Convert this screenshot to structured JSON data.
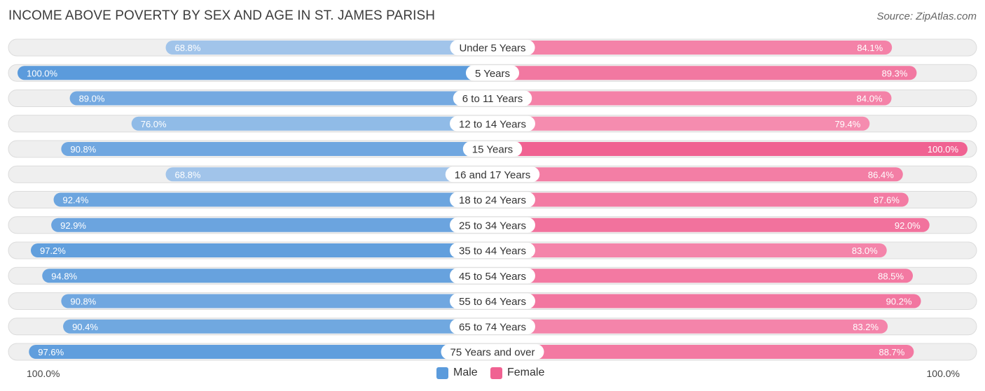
{
  "chart_data": {
    "type": "bar",
    "orientation": "horizontal-diverging",
    "title": "INCOME ABOVE POVERTY BY SEX AND AGE IN ST. JAMES PARISH",
    "source": "Source: ZipAtlas.com",
    "categories": [
      "Under 5 Years",
      "5 Years",
      "6 to 11 Years",
      "12 to 14 Years",
      "15 Years",
      "16 and 17 Years",
      "18 to 24 Years",
      "25 to 34 Years",
      "35 to 44 Years",
      "45 to 54 Years",
      "55 to 64 Years",
      "65 to 74 Years",
      "75 Years and over"
    ],
    "series": [
      {
        "name": "Male",
        "values": [
          68.8,
          100.0,
          89.0,
          76.0,
          90.8,
          68.8,
          92.4,
          92.9,
          97.2,
          94.8,
          90.8,
          90.4,
          97.6
        ],
        "labels": [
          "68.8%",
          "100.0%",
          "89.0%",
          "76.0%",
          "90.8%",
          "68.8%",
          "92.4%",
          "92.9%",
          "97.2%",
          "94.8%",
          "90.8%",
          "90.4%",
          "97.6%"
        ]
      },
      {
        "name": "Female",
        "values": [
          84.1,
          89.3,
          84.0,
          79.4,
          100.0,
          86.4,
          87.6,
          92.0,
          83.0,
          88.5,
          90.2,
          83.2,
          88.7
        ],
        "labels": [
          "84.1%",
          "89.3%",
          "84.0%",
          "79.4%",
          "100.0%",
          "86.4%",
          "87.6%",
          "92.0%",
          "83.0%",
          "88.5%",
          "90.2%",
          "83.2%",
          "88.7%"
        ]
      }
    ],
    "xlim": [
      0,
      100
    ],
    "axis_left_label": "100.0%",
    "axis_right_label": "100.0%",
    "legend_position": "bottom-center"
  },
  "colors": {
    "male_strong": "#5b9bdc",
    "male_light": "#a9c9ec",
    "female_strong": "#f06292",
    "female_light": "#f8a9c3",
    "track": "#efefef",
    "track_border": "#dcdcdc"
  }
}
